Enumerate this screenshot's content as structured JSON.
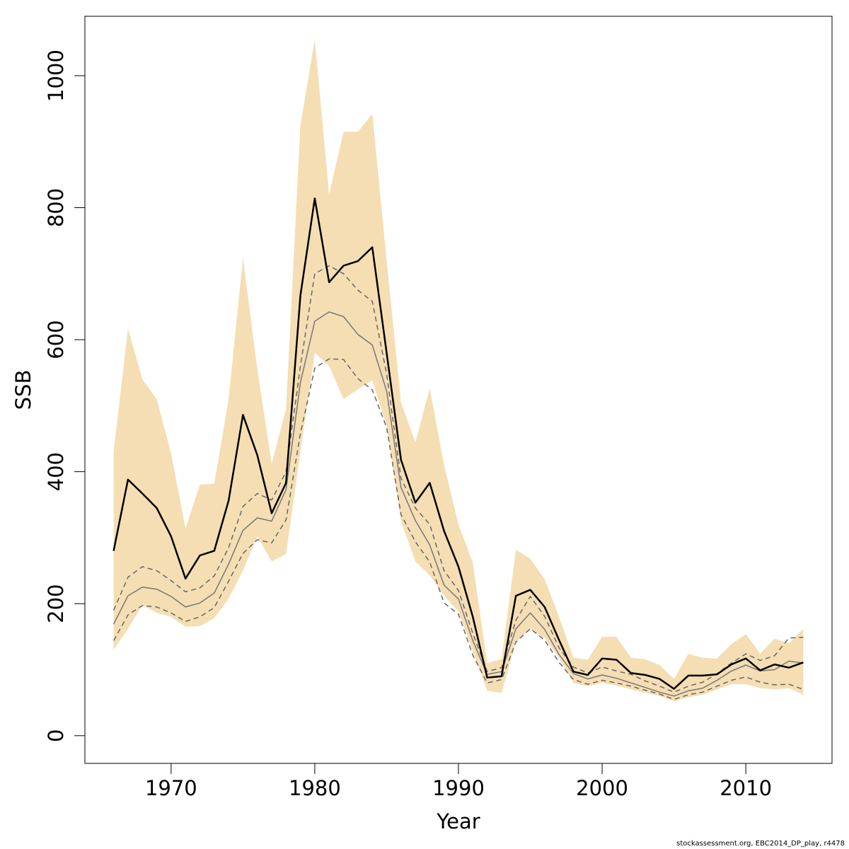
{
  "chart_data": {
    "type": "line",
    "title": "",
    "xlabel": "Year",
    "ylabel": "SSB",
    "xlim": [
      1964,
      2016
    ],
    "ylim": [
      -42,
      1090
    ],
    "x_ticks": [
      1970,
      1980,
      1990,
      2000,
      2010
    ],
    "x_tick_labels": [
      "1970",
      "1980",
      "1990",
      "2000",
      "2010"
    ],
    "y_ticks": [
      0,
      200,
      400,
      600,
      800,
      1000
    ],
    "y_tick_labels": [
      "0",
      "200",
      "400",
      "600",
      "800",
      "1000"
    ],
    "grid": false,
    "legend": "none",
    "x": [
      1966,
      1967,
      1968,
      1969,
      1970,
      1971,
      1972,
      1973,
      1974,
      1975,
      1976,
      1977,
      1978,
      1979,
      1980,
      1981,
      1982,
      1983,
      1984,
      1985,
      1986,
      1987,
      1988,
      1989,
      1990,
      1991,
      1992,
      1993,
      1994,
      1995,
      1996,
      1997,
      1998,
      1999,
      2000,
      2001,
      2002,
      2003,
      2004,
      2005,
      2006,
      2007,
      2008,
      2009,
      2010,
      2011,
      2012,
      2013,
      2014
    ],
    "band": {
      "color": "#f5deb3",
      "upper": [
        430,
        617,
        540,
        510,
        428,
        314,
        380,
        382,
        510,
        724,
        555,
        412,
        495,
        925,
        1055,
        820,
        915,
        915,
        942,
        720,
        505,
        444,
        527,
        410,
        320,
        262,
        110,
        116,
        282,
        268,
        237,
        180,
        118,
        115,
        150,
        150,
        118,
        116,
        107,
        86,
        124,
        118,
        117,
        139,
        154,
        124,
        147,
        140,
        162
      ],
      "lower": [
        130,
        162,
        198,
        186,
        180,
        165,
        166,
        178,
        208,
        250,
        302,
        264,
        275,
        430,
        580,
        560,
        510,
        525,
        538,
        470,
        325,
        264,
        243,
        212,
        188,
        128,
        68,
        65,
        142,
        162,
        148,
        118,
        80,
        75,
        80,
        76,
        70,
        65,
        60,
        52,
        58,
        62,
        70,
        78,
        78,
        72,
        70,
        72,
        62
      ]
    },
    "series": [
      {
        "name": "",
        "color": "#000000",
        "width": 2.5,
        "dash": "",
        "values": [
          280,
          388,
          367,
          345,
          302,
          238,
          273,
          280,
          356,
          486,
          425,
          337,
          383,
          667,
          814,
          687,
          712,
          719,
          740,
          580,
          418,
          353,
          383,
          310,
          256,
          180,
          88,
          90,
          212,
          221,
          195,
          145,
          97,
          92,
          117,
          115,
          95,
          92,
          86,
          71,
          91,
          91,
          93,
          108,
          117,
          99,
          108,
          103,
          111
        ]
      },
      {
        "name": "",
        "color": "#777777",
        "width": 1.5,
        "dash": "",
        "values": [
          169,
          212,
          225,
          222,
          211,
          195,
          201,
          216,
          260,
          311,
          330,
          325,
          373,
          535,
          628,
          642,
          635,
          608,
          592,
          522,
          376,
          326,
          289,
          228,
          207,
          144,
          93,
          97,
          162,
          186,
          161,
          123,
          94,
          86,
          92,
          87,
          80,
          73,
          66,
          60,
          68,
          72,
          84,
          98,
          107,
          98,
          100,
          113,
          110
        ]
      },
      {
        "name": "",
        "color": "#666666",
        "width": 1.5,
        "dash": "7,5",
        "values": [
          190,
          240,
          256,
          250,
          235,
          218,
          224,
          242,
          285,
          347,
          367,
          357,
          400,
          560,
          700,
          712,
          700,
          675,
          658,
          548,
          390,
          345,
          320,
          250,
          220,
          155,
          97,
          103,
          175,
          211,
          181,
          133,
          104,
          95,
          104,
          98,
          93,
          83,
          75,
          66,
          75,
          81,
          94,
          110,
          124,
          114,
          121,
          148,
          149
        ]
      },
      {
        "name": "",
        "color": "#666666",
        "width": 1.5,
        "dash": "7,5",
        "values": [
          144,
          183,
          197,
          195,
          186,
          173,
          180,
          194,
          234,
          276,
          297,
          292,
          327,
          458,
          557,
          571,
          570,
          541,
          524,
          467,
          335,
          294,
          263,
          201,
          184,
          122,
          80,
          85,
          142,
          162,
          145,
          111,
          85,
          78,
          84,
          80,
          75,
          69,
          63,
          55,
          62,
          66,
          75,
          84,
          89,
          81,
          77,
          78,
          70
        ]
      }
    ]
  },
  "footer": {
    "text": "stockassessment.org, EBC2014_DP_play, r4478"
  }
}
